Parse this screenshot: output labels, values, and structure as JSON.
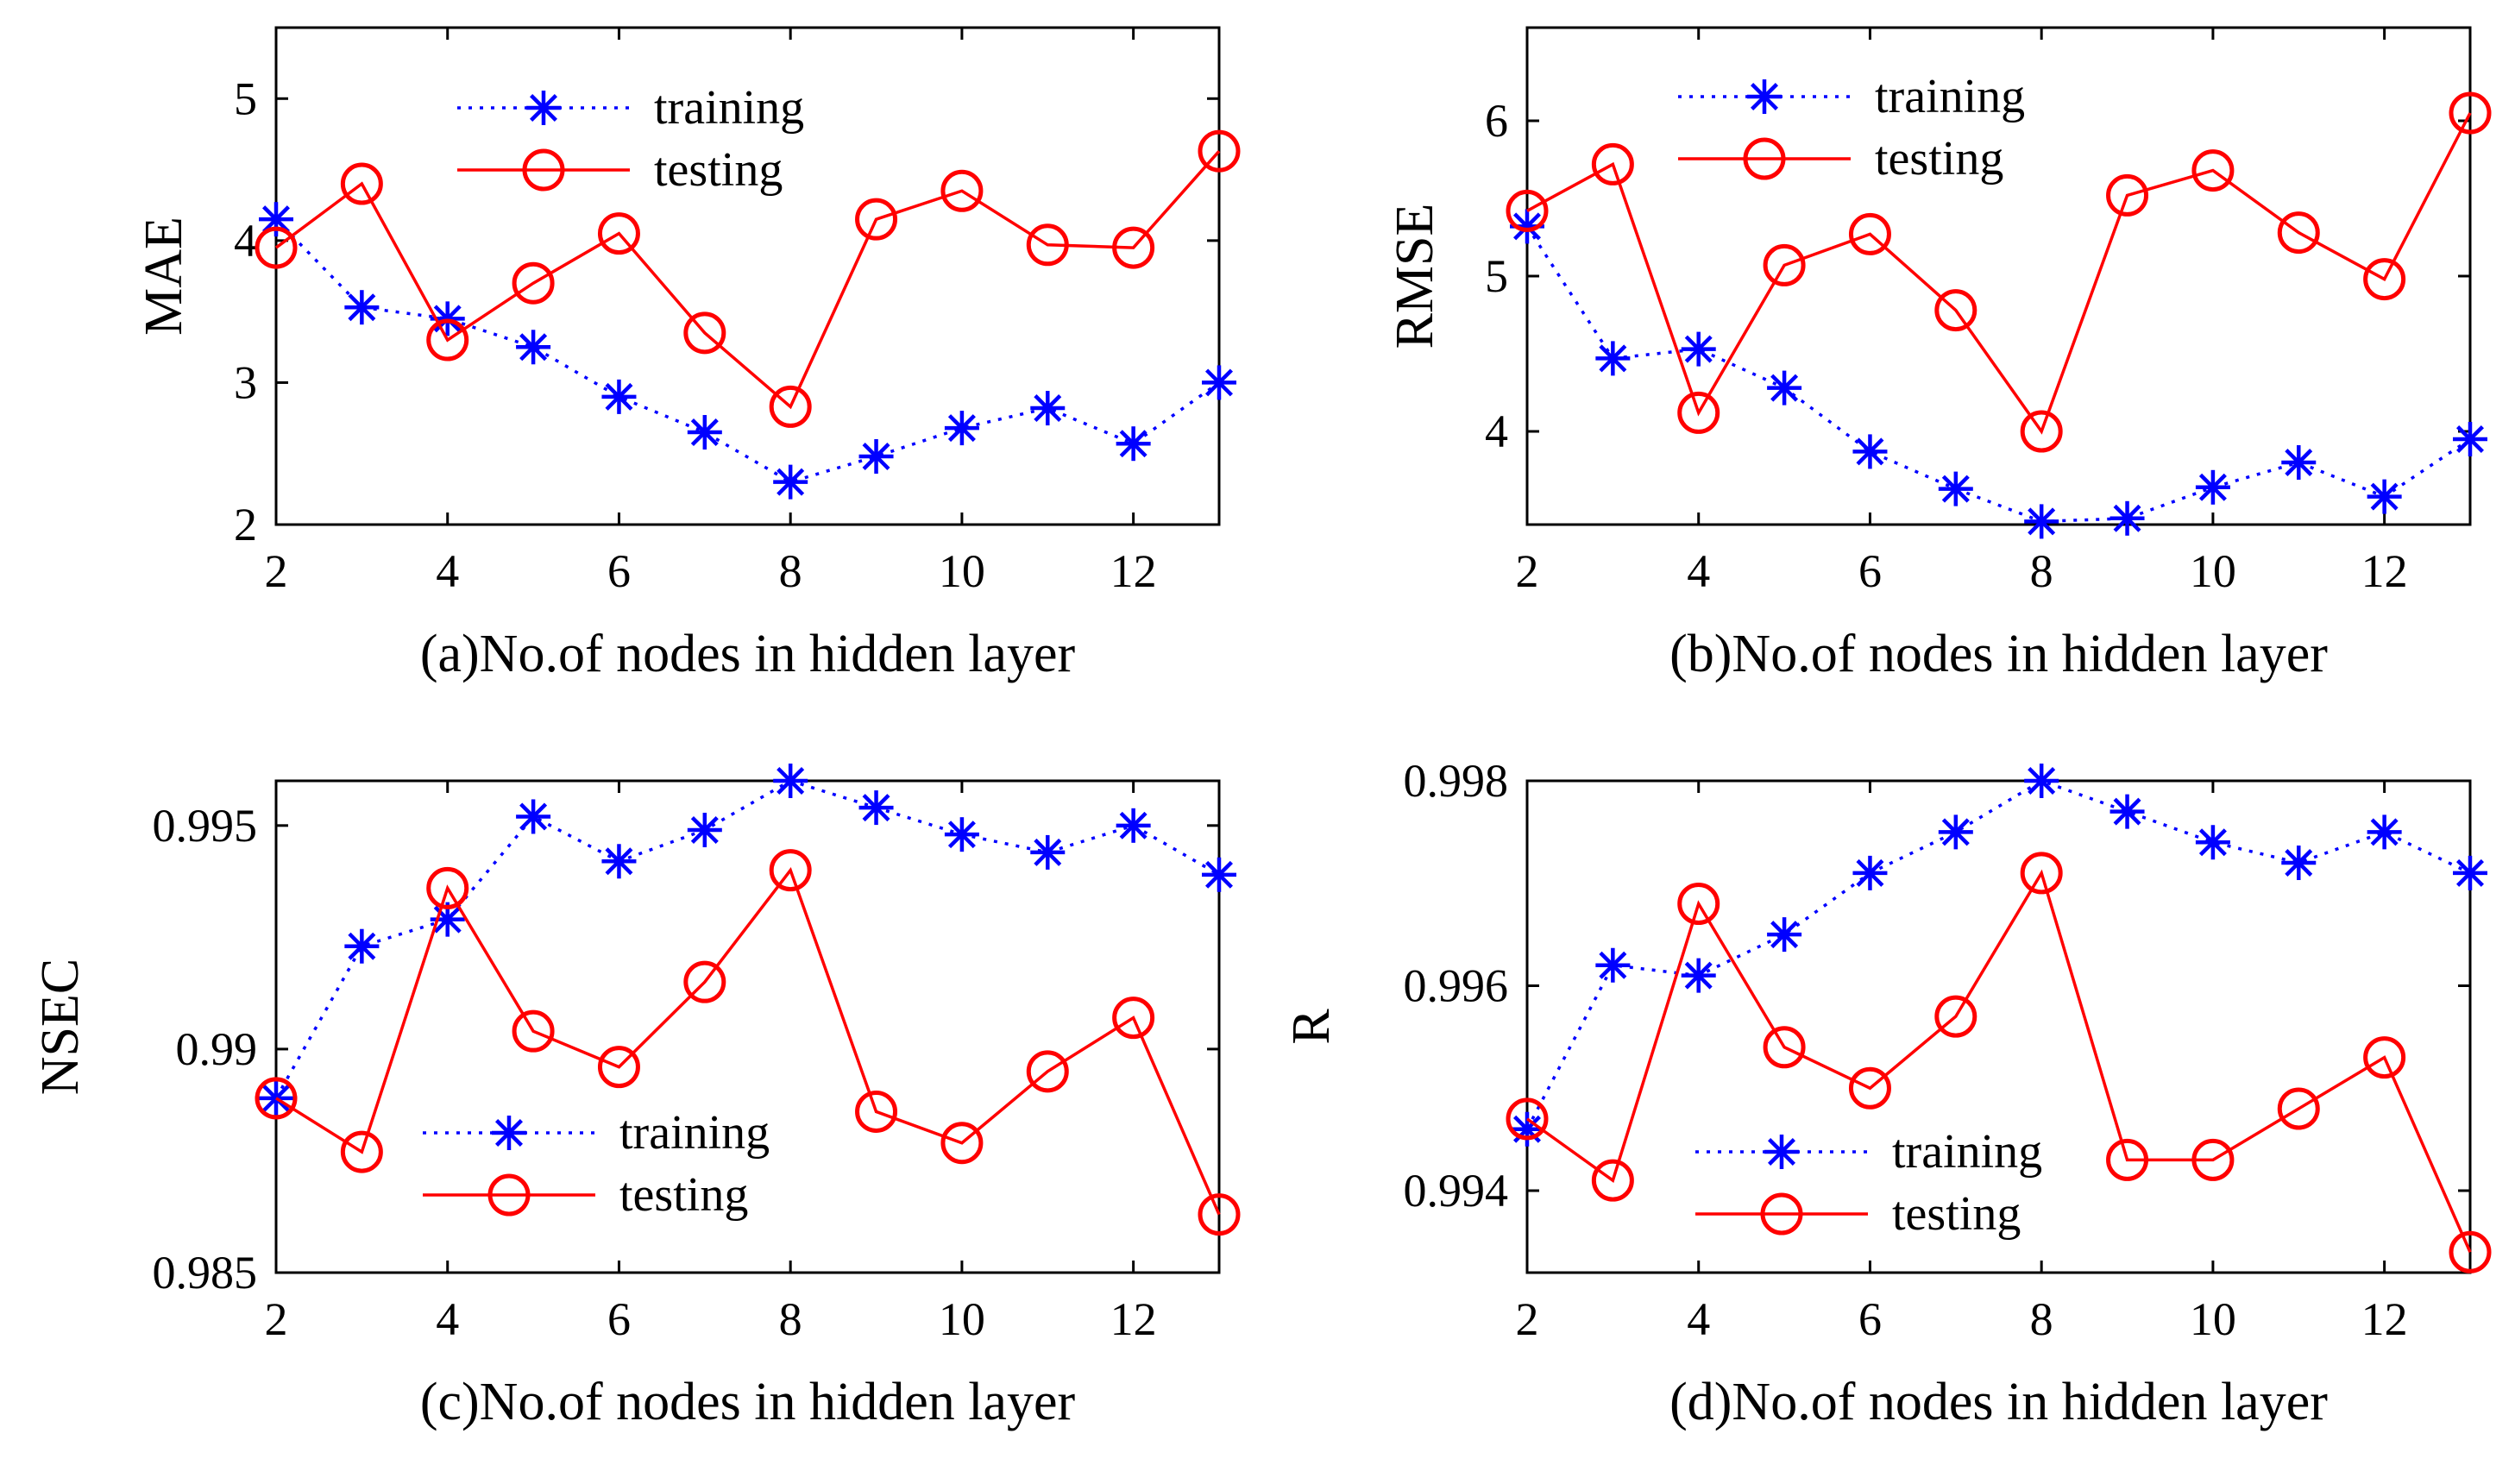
{
  "figure": {
    "description_free": true
  },
  "colors": {
    "training": "#0000ff",
    "testing": "#ff0000",
    "axis": "#000000"
  },
  "chart_data": [
    {
      "type": "line",
      "id": "a",
      "xlabel": "(a)No.of nodes in hidden layer",
      "ylabel": "MAE",
      "x": [
        2,
        3,
        4,
        5,
        6,
        7,
        8,
        9,
        10,
        11,
        12,
        13
      ],
      "xlim": [
        2,
        13
      ],
      "ylim": [
        2,
        5.5
      ],
      "xticks": [
        2,
        4,
        6,
        8,
        10,
        12
      ],
      "xtick_labels": [
        "2",
        "4",
        "6",
        "8",
        "10",
        "12"
      ],
      "yticks": [
        2,
        3,
        4,
        5
      ],
      "ytick_labels": [
        "2",
        "3",
        "4",
        "5"
      ],
      "legend_position": "top-center",
      "series": [
        {
          "name": "training",
          "style": "dotted-star",
          "values": [
            4.15,
            3.53,
            3.45,
            3.25,
            2.9,
            2.65,
            2.3,
            2.48,
            2.68,
            2.82,
            2.57,
            3.0
          ]
        },
        {
          "name": "testing",
          "style": "solid-circle",
          "values": [
            3.95,
            4.4,
            3.3,
            3.7,
            4.05,
            3.35,
            2.83,
            4.15,
            4.35,
            3.97,
            3.95,
            4.63
          ]
        }
      ]
    },
    {
      "type": "line",
      "id": "b",
      "xlabel": "(b)No.of nodes in hidden layer",
      "ylabel": "RMSE",
      "x": [
        2,
        3,
        4,
        5,
        6,
        7,
        8,
        9,
        10,
        11,
        12,
        13
      ],
      "xlim": [
        2,
        13
      ],
      "ylim": [
        3.4,
        6.6
      ],
      "xticks": [
        2,
        4,
        6,
        8,
        10,
        12
      ],
      "xtick_labels": [
        "2",
        "4",
        "6",
        "8",
        "10",
        "12"
      ],
      "yticks": [
        4,
        5,
        6
      ],
      "ytick_labels": [
        "4",
        "5",
        "6"
      ],
      "legend_position": "top-center",
      "series": [
        {
          "name": "training",
          "style": "dotted-star",
          "values": [
            5.32,
            4.47,
            4.53,
            4.28,
            3.87,
            3.63,
            3.42,
            3.44,
            3.64,
            3.8,
            3.58,
            3.95
          ]
        },
        {
          "name": "testing",
          "style": "solid-circle",
          "values": [
            5.42,
            5.72,
            4.12,
            5.07,
            5.27,
            4.78,
            4.0,
            5.52,
            5.68,
            5.28,
            4.98,
            6.05
          ]
        }
      ]
    },
    {
      "type": "line",
      "id": "c",
      "xlabel": "(c)No.of nodes in hidden layer",
      "ylabel": "NSEC",
      "x": [
        2,
        3,
        4,
        5,
        6,
        7,
        8,
        9,
        10,
        11,
        12,
        13
      ],
      "xlim": [
        2,
        13
      ],
      "ylim": [
        0.985,
        0.996
      ],
      "xticks": [
        2,
        4,
        6,
        8,
        10,
        12
      ],
      "xtick_labels": [
        "2",
        "4",
        "6",
        "8",
        "10",
        "12"
      ],
      "yticks": [
        0.985,
        0.99,
        0.995
      ],
      "ytick_labels": [
        "0.985",
        "0.99",
        "0.995"
      ],
      "legend_position": "bottom-left",
      "series": [
        {
          "name": "training",
          "style": "dotted-star",
          "values": [
            0.9889,
            0.9923,
            0.9929,
            0.9952,
            0.9942,
            0.9949,
            0.996,
            0.9954,
            0.9948,
            0.9944,
            0.995,
            0.9939
          ]
        },
        {
          "name": "testing",
          "style": "solid-circle",
          "values": [
            0.9889,
            0.9877,
            0.9936,
            0.9904,
            0.9896,
            0.9915,
            0.994,
            0.9886,
            0.9879,
            0.9895,
            0.9907,
            0.9863
          ]
        }
      ]
    },
    {
      "type": "line",
      "id": "d",
      "xlabel": "(d)No.of nodes in hidden layer",
      "ylabel": "R",
      "x": [
        2,
        3,
        4,
        5,
        6,
        7,
        8,
        9,
        10,
        11,
        12,
        13
      ],
      "xlim": [
        2,
        13
      ],
      "ylim": [
        0.9932,
        0.998
      ],
      "xticks": [
        2,
        4,
        6,
        8,
        10,
        12
      ],
      "xtick_labels": [
        "2",
        "4",
        "6",
        "8",
        "10",
        "12"
      ],
      "yticks": [
        0.994,
        0.996,
        0.998
      ],
      "ytick_labels": [
        "0.994",
        "0.996",
        "0.998"
      ],
      "legend_position": "bottom-center",
      "series": [
        {
          "name": "training",
          "style": "dotted-star",
          "values": [
            0.9946,
            0.9962,
            0.9961,
            0.9965,
            0.9971,
            0.9975,
            0.998,
            0.9977,
            0.9974,
            0.9972,
            0.9975,
            0.9971
          ]
        },
        {
          "name": "testing",
          "style": "solid-circle",
          "values": [
            0.9947,
            0.9941,
            0.9968,
            0.9954,
            0.995,
            0.9957,
            0.9971,
            0.9943,
            0.9943,
            0.9948,
            0.9953,
            0.9934
          ]
        }
      ]
    }
  ]
}
